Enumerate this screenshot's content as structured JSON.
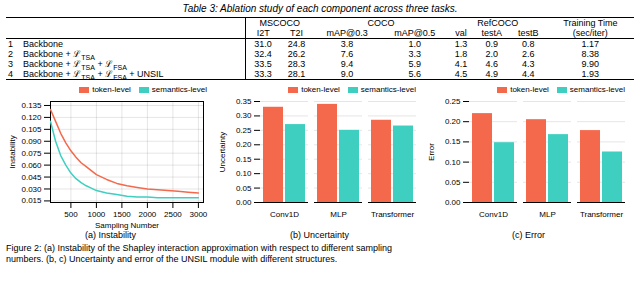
{
  "chart_data": [
    {
      "type": "table",
      "title": "Table 3: Ablation study of each component across three tasks.",
      "columns": [
        {
          "group": "MSCOCO",
          "label": "I2T"
        },
        {
          "group": "MSCOCO",
          "label": "T2I"
        },
        {
          "group": "COCO",
          "label": "mAP@0.3"
        },
        {
          "group": "COCO",
          "label": "mAP@0.5"
        },
        {
          "group": "RefCOCO",
          "label": "val"
        },
        {
          "group": "RefCOCO",
          "label": "testA"
        },
        {
          "group": "RefCOCO",
          "label": "testB"
        },
        {
          "group": "Training Time",
          "label": "(sec/iter)"
        }
      ],
      "rows": [
        {
          "label": "1    Backbone",
          "values": [
            "31.0",
            "24.8",
            "3.8",
            "1.0",
            "1.3",
            "0.9",
            "0.8",
            "1.17"
          ]
        },
        {
          "label": "2    Backbone + ℒTSA",
          "values": [
            "32.4",
            "26.2",
            "7.6",
            "3.3",
            "1.8",
            "2.0",
            "2.6",
            "8.38"
          ]
        },
        {
          "label": "3    Backbone + ℒTSA + ℒFSA",
          "values": [
            "33.5",
            "28.3",
            "9.4",
            "5.9",
            "4.1",
            "4.6",
            "4.3",
            "9.90"
          ]
        },
        {
          "label": "4    Backbone + ℒTSA + ℒFSA + UNSIL",
          "values": [
            "33.3",
            "28.1",
            "9.0",
            "5.6",
            "4.5",
            "4.9",
            "4.4",
            "1.93"
          ]
        }
      ]
    },
    {
      "type": "line",
      "caption": "(a) Instability",
      "xlabel": "Sampling Number",
      "ylabel": "Instability",
      "x": [
        100,
        200,
        300,
        400,
        500,
        600,
        700,
        800,
        900,
        1000,
        1200,
        1400,
        1600,
        1800,
        2000,
        2200,
        2400,
        2600,
        2800,
        3000
      ],
      "xlim": [
        100,
        3100
      ],
      "xticks": [
        500,
        1000,
        1500,
        2000,
        2500,
        3000
      ],
      "ylim": [
        0.013,
        0.14
      ],
      "yticks": [
        0.015,
        {
          "value": 0.03,
          "label": "0.030"
        },
        0.045,
        {
          "value": 0.06,
          "label": "0.060"
        },
        0.075,
        {
          "value": 0.09,
          "label": "0.090"
        },
        0.105,
        {
          "value": 0.12,
          "label": "0.120"
        },
        0.135
      ],
      "grid": true,
      "legend": "upper right",
      "series": [
        {
          "name": "token-level",
          "color": "#F4694C",
          "values": [
            0.13,
            0.115,
            0.1,
            0.088,
            0.078,
            0.07,
            0.063,
            0.058,
            0.053,
            0.048,
            0.042,
            0.037,
            0.034,
            0.032,
            0.03,
            0.029,
            0.028,
            0.027,
            0.026,
            0.025
          ]
        },
        {
          "name": "semantics-level",
          "color": "#3ECFC1",
          "values": [
            0.115,
            0.09,
            0.072,
            0.06,
            0.05,
            0.043,
            0.038,
            0.034,
            0.031,
            0.028,
            0.025,
            0.023,
            0.021,
            0.02,
            0.02,
            0.019,
            0.019,
            0.019,
            0.019,
            0.019
          ]
        }
      ]
    },
    {
      "type": "bar",
      "caption": "(b) Uncertainty",
      "ylabel": "Uncertainty",
      "categories": [
        "Conv1D",
        "MLP",
        "Transformer"
      ],
      "ylim": [
        0.0,
        0.35
      ],
      "yticks": [
        {
          "value": 0,
          "label": "0.00"
        },
        0.05,
        {
          "value": 0.1,
          "label": "0.10"
        },
        0.15,
        {
          "value": 0.2,
          "label": "0.20"
        },
        0.25,
        {
          "value": 0.3,
          "label": "0.30"
        },
        0.35
      ],
      "grid": "y",
      "legend": "upper right",
      "series": [
        {
          "name": "token-level",
          "color": "#F4694C",
          "values": [
            0.33,
            0.34,
            0.285
          ]
        },
        {
          "name": "semantics-level",
          "color": "#3ECFC1",
          "values": [
            0.27,
            0.25,
            0.265
          ]
        }
      ]
    },
    {
      "type": "bar",
      "caption": "(c) Error",
      "ylabel": "Error",
      "categories": [
        "Conv1D",
        "MLP",
        "Transformer"
      ],
      "ylim": [
        0.0,
        0.25
      ],
      "yticks": [
        {
          "value": 0,
          "label": "0.00"
        },
        0.05,
        {
          "value": 0.1,
          "label": "0.10"
        },
        0.15,
        {
          "value": 0.2,
          "label": "0.20"
        },
        0.25
      ],
      "grid": "y",
      "legend": "upper right",
      "series": [
        {
          "name": "token-level",
          "color": "#F4694C",
          "values": [
            0.22,
            0.205,
            0.178
          ]
        },
        {
          "name": "semantics-level",
          "color": "#3ECFC1",
          "values": [
            0.148,
            0.168,
            0.125
          ]
        }
      ]
    }
  ],
  "caption": "Figure 2: (a) Instability of the Shapley interaction approximation with respect to different sampling\nnumbers. (b, c) Uncertainty and error of the UNSIL module with different structures."
}
